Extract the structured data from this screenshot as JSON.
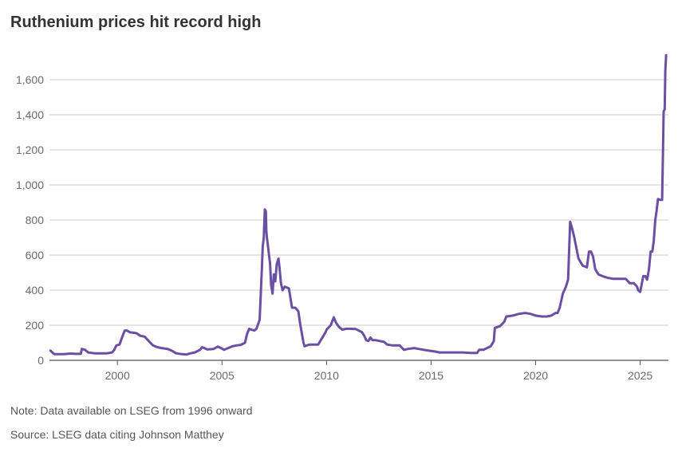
{
  "chart_data": {
    "type": "line",
    "title": "Ruthenium prices hit record high",
    "xlabel": "",
    "ylabel": "",
    "xlim": [
      1996.75,
      2026.35
    ],
    "ylim": [
      0,
      1800
    ],
    "x_ticks": [
      2000,
      2005,
      2010,
      2015,
      2020,
      2025
    ],
    "x_tick_labels": [
      "2000",
      "2005",
      "2010",
      "2015",
      "2020",
      "2025"
    ],
    "y_ticks": [
      0,
      200,
      400,
      600,
      800,
      1000,
      1200,
      1400,
      1600
    ],
    "y_tick_labels": [
      "0",
      "200",
      "400",
      "600",
      "800",
      "1,000",
      "1,200",
      "1,400",
      "1,600"
    ],
    "grid": true,
    "line_color": "#6a4fa3",
    "series": [
      {
        "x": [
          1996.8,
          1996.95,
          1997.0,
          1997.2,
          1997.5,
          1997.7,
          1997.85,
          1998.0,
          1998.25,
          1998.3,
          1998.45,
          1998.6,
          1998.9,
          1999.2,
          1999.5,
          1999.75,
          1999.85,
          1999.95,
          2000.1,
          2000.25,
          2000.35,
          2000.45,
          2000.6,
          2000.9,
          2001.1,
          2001.3,
          2001.5,
          2001.7,
          2001.9,
          2002.1,
          2002.4,
          2002.6,
          2002.8,
          2003.1,
          2003.3,
          2003.5,
          2003.7,
          2003.95,
          2004.05,
          2004.3,
          2004.6,
          2004.8,
          2004.95,
          2005.1,
          2005.3,
          2005.5,
          2005.7,
          2005.9,
          2006.1,
          2006.2,
          2006.3,
          2006.4,
          2006.55,
          2006.65,
          2006.8,
          2006.9,
          2006.95,
          2007.0,
          2007.05,
          2007.1,
          2007.12,
          2007.15,
          2007.2,
          2007.25,
          2007.3,
          2007.35,
          2007.42,
          2007.48,
          2007.55,
          2007.62,
          2007.7,
          2007.75,
          2007.82,
          2007.9,
          2008.0,
          2008.2,
          2008.35,
          2008.5,
          2008.65,
          2008.75,
          2008.9,
          2008.95,
          2009.05,
          2009.2,
          2009.4,
          2009.6,
          2009.95,
          2010.0,
          2010.2,
          2010.35,
          2010.45,
          2010.6,
          2010.75,
          2010.95,
          2011.1,
          2011.4,
          2011.7,
          2011.8,
          2011.9,
          2012.0,
          2012.1,
          2012.2,
          2012.35,
          2012.55,
          2012.75,
          2012.9,
          2013.15,
          2013.5,
          2013.7,
          2013.9,
          2014.2,
          2014.4,
          2014.65,
          2014.9,
          2015.2,
          2015.4,
          2015.7,
          2016.0,
          2016.5,
          2016.9,
          2017.2,
          2017.3,
          2017.5,
          2017.85,
          2018.0,
          2018.05,
          2018.3,
          2018.5,
          2018.6,
          2018.9,
          2019.2,
          2019.5,
          2019.75,
          2020.0,
          2020.3,
          2020.55,
          2020.75,
          2020.95,
          2021.05,
          2021.15,
          2021.3,
          2021.45,
          2021.55,
          2021.65,
          2021.75,
          2021.85,
          2021.95,
          2022.05,
          2022.25,
          2022.45,
          2022.55,
          2022.65,
          2022.75,
          2022.85,
          2023.0,
          2023.2,
          2023.45,
          2023.7,
          2024.1,
          2024.3,
          2024.5,
          2024.7,
          2024.85,
          2024.9,
          2025.0,
          2025.15,
          2025.25,
          2025.33,
          2025.42,
          2025.5,
          2025.58,
          2025.65,
          2025.72,
          2025.78,
          2025.85,
          2025.95,
          2026.05,
          2026.1,
          2026.12,
          2026.17,
          2026.2,
          2026.24
        ],
        "y": [
          55,
          38,
          35,
          35,
          36,
          38,
          38,
          37,
          37,
          65,
          60,
          45,
          40,
          40,
          40,
          45,
          60,
          85,
          90,
          140,
          170,
          170,
          160,
          155,
          140,
          135,
          110,
          85,
          75,
          70,
          65,
          55,
          40,
          35,
          33,
          40,
          45,
          60,
          75,
          62,
          65,
          78,
          70,
          60,
          70,
          80,
          85,
          88,
          100,
          150,
          180,
          175,
          170,
          180,
          230,
          500,
          650,
          700,
          860,
          850,
          740,
          700,
          650,
          600,
          550,
          430,
          380,
          490,
          450,
          550,
          580,
          530,
          440,
          400,
          420,
          410,
          300,
          300,
          280,
          200,
          100,
          80,
          85,
          90,
          90,
          90,
          160,
          175,
          200,
          245,
          215,
          190,
          175,
          180,
          180,
          178,
          160,
          140,
          115,
          110,
          130,
          115,
          115,
          110,
          105,
          90,
          85,
          85,
          60,
          65,
          70,
          65,
          60,
          55,
          50,
          45,
          45,
          45,
          45,
          42,
          42,
          60,
          60,
          80,
          110,
          185,
          195,
          220,
          250,
          255,
          265,
          270,
          265,
          255,
          250,
          250,
          255,
          270,
          270,
          300,
          380,
          420,
          460,
          790,
          750,
          700,
          640,
          580,
          540,
          530,
          620,
          620,
          590,
          520,
          490,
          480,
          470,
          465,
          465,
          465,
          440,
          440,
          420,
          400,
          390,
          480,
          480,
          460,
          520,
          620,
          620,
          680,
          800,
          850,
          920,
          915,
          915,
          1250,
          1420,
          1430,
          1650,
          1740
        ]
      }
    ]
  },
  "title": "Ruthenium prices hit record high",
  "footnote": {
    "note": "Note: Data available on LSEG from 1996 onward",
    "source": "Source: LSEG data citing Johnson Matthey"
  }
}
